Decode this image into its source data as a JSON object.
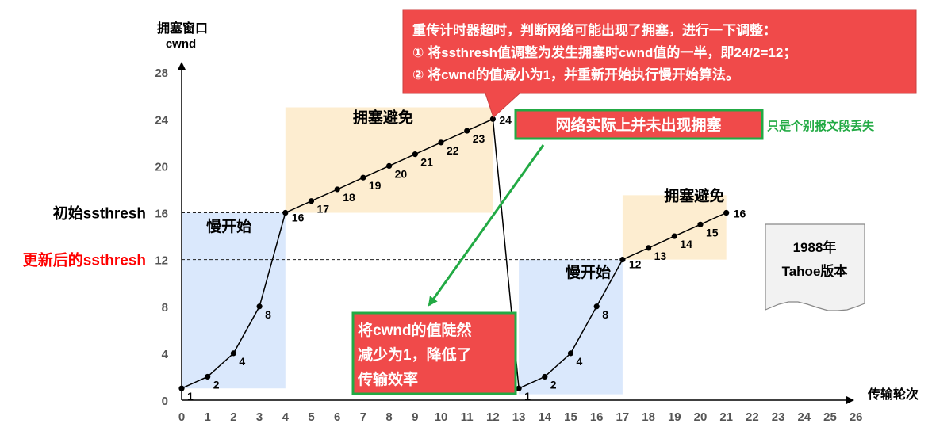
{
  "chart_data": {
    "type": "line",
    "ylabel_line1": "拥塞窗口",
    "ylabel_line2": "cwnd",
    "xlabel": "传输轮次",
    "xlim": [
      0,
      26
    ],
    "ylim": [
      0,
      28
    ],
    "x_ticks": [
      "0",
      "1",
      "2",
      "3",
      "4",
      "5",
      "6",
      "7",
      "8",
      "9",
      "10",
      "11",
      "12",
      "13",
      "14",
      "15",
      "16",
      "17",
      "18",
      "19",
      "20",
      "21",
      "22",
      "23",
      "24",
      "25",
      "26"
    ],
    "y_ticks": [
      "0",
      "4",
      "8",
      "12",
      "16",
      "20",
      "24",
      "28"
    ],
    "series": [
      {
        "x": [
          0,
          1,
          2,
          3,
          4,
          5,
          6,
          7,
          8,
          9,
          10,
          11,
          12,
          13,
          14,
          15,
          16,
          17,
          18,
          19,
          20,
          21
        ],
        "y": [
          1,
          2,
          4,
          8,
          16,
          17,
          18,
          19,
          20,
          21,
          22,
          23,
          24,
          1,
          2,
          4,
          8,
          12,
          13,
          14,
          15,
          16
        ],
        "labels": [
          "1",
          "2",
          "4",
          "8",
          "16",
          "17",
          "18",
          "19",
          "20",
          "21",
          "22",
          "23",
          "24",
          "1",
          "2",
          "4",
          "8",
          "12",
          "13",
          "14",
          "15",
          "16"
        ]
      }
    ],
    "thresholds": [
      {
        "value": 16,
        "label": "初始ssthresh",
        "color": "#000000",
        "x_end": 4
      },
      {
        "value": 12,
        "label": "更新后的ssthresh",
        "color": "#ff0000",
        "x_end": 17
      }
    ],
    "regions": [
      {
        "label": "慢开始",
        "x0": 0,
        "x1": 4,
        "y0": 1,
        "y1": 16,
        "color": "#dae8fc"
      },
      {
        "label": "拥塞避免",
        "x0": 4,
        "x1": 12,
        "y0": 16,
        "y1": 25,
        "color": "#fdedd0"
      },
      {
        "label": "慢开始",
        "x0": 13,
        "x1": 17,
        "y0": 0.5,
        "y1": 12,
        "color": "#dae8fc"
      },
      {
        "label": "拥塞避免",
        "x0": 17,
        "x1": 21,
        "y0": 12,
        "y1": 17.5,
        "color": "#fdedd0"
      }
    ],
    "grid": false
  },
  "callouts": {
    "timeout_line1": "重传计时器超时，判断网络可能出现了拥塞，进行一下调整：",
    "timeout_line2": "① 将ssthresh值调整为发生拥塞时cwnd值的一半，即24/2=12；",
    "timeout_line3": "② 将cwnd的值减小为1，并重新开始执行慢开始算法。",
    "not_congested": "网络实际上并未出现拥塞",
    "only_lost": "只是个别报文段丢失",
    "drop_line1": "将cwnd的值陡然",
    "drop_line2": "减少为1，降低了",
    "drop_line3": "传输效率",
    "version_line1": "1988年",
    "version_line2": "Tahoe版本"
  },
  "colors": {
    "slow_start_fill": "#dae8fc",
    "avoidance_fill": "#fdedd0",
    "callout_red": "#f04a4a",
    "green": "#22aa44",
    "red_text": "#ff0000",
    "axis": "#000000",
    "tick_text": "#555555"
  }
}
